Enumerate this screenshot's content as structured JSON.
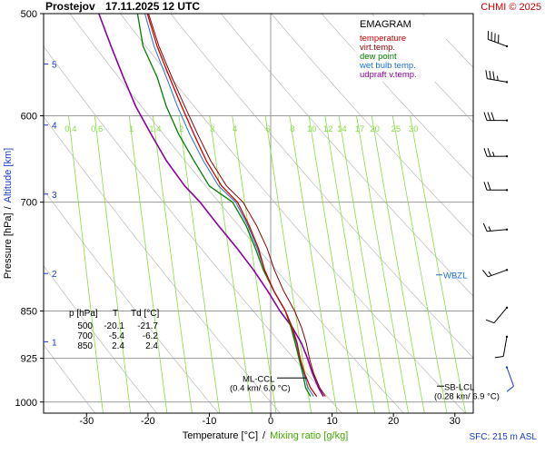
{
  "header": {
    "station": "Prostejov",
    "datetime": "17.11.2025 12 UTC",
    "credit": "CHMI © 2025"
  },
  "footer": {
    "sfc": "SFC: 215 m ASL"
  },
  "colors": {
    "temperature": "#cc0000",
    "virt_temp": "#8b0000",
    "dew_point": "#008000",
    "wet_bulb": "#1e6fd0",
    "updraft": "#8b00a0",
    "mixing": "#88dd44",
    "dry_adiabat": "#bbbbbb",
    "grid": "#999999",
    "altitude": "#1a3ccc",
    "wind": "#000000"
  },
  "chart_data": {
    "type": "line",
    "title": "EMAGRAM",
    "xlabel": {
      "temp": "Temperature [°C]",
      "sep": "/",
      "mix": "Mixing ratio [g/kg]"
    },
    "ylabel": {
      "pres": "Pressure [hPa]",
      "sep": "/",
      "alt": "Altitude [km]"
    },
    "xlim": [
      -37,
      33
    ],
    "ylim": [
      1020,
      500
    ],
    "x_ticks": [
      "-30",
      "-20",
      "-10",
      "0",
      "10",
      "20",
      "30"
    ],
    "x_tick_values": [
      -30,
      -20,
      -10,
      0,
      10,
      20,
      30
    ],
    "y_ticks": [
      "500",
      "600",
      "700",
      "850",
      "925",
      "1000"
    ],
    "y_tick_values": [
      500,
      600,
      700,
      850,
      925,
      1000
    ],
    "altitude_ticks": [
      {
        "label": "5",
        "p": 547
      },
      {
        "label": "4",
        "p": 610
      },
      {
        "label": "3",
        "p": 690
      },
      {
        "label": "2",
        "p": 795
      },
      {
        "label": "1",
        "p": 898
      }
    ],
    "mixing_ratio_labels": [
      "0.4",
      "0.6",
      "1",
      "1.4",
      "2",
      "3",
      "4",
      "6",
      "8",
      "10",
      "12",
      "14",
      "17",
      "20",
      "25",
      "30"
    ],
    "mixing_ratio_values": [
      0.4,
      0.6,
      1,
      1.4,
      2,
      3,
      4,
      6,
      8,
      10,
      12,
      14,
      17,
      20,
      25,
      30
    ],
    "legend": [
      "temperature",
      "virt.temp.",
      "dew point",
      "wet bulb temp.",
      "udpraft v.temp."
    ],
    "series": [
      {
        "name": "temperature",
        "points": [
          [
            -20.1,
            500
          ],
          [
            -18.5,
            530
          ],
          [
            -16.5,
            560
          ],
          [
            -14.5,
            590
          ],
          [
            -12.5,
            620
          ],
          [
            -10.5,
            650
          ],
          [
            -8,
            680
          ],
          [
            -5.4,
            700
          ],
          [
            -3.5,
            730
          ],
          [
            -2,
            760
          ],
          [
            -1,
            790
          ],
          [
            0.5,
            820
          ],
          [
            2.4,
            850
          ],
          [
            3.5,
            875
          ],
          [
            4.3,
            900
          ],
          [
            4.8,
            925
          ],
          [
            5.5,
            950
          ],
          [
            6.5,
            975
          ],
          [
            7.5,
            990
          ]
        ]
      },
      {
        "name": "virt.temp.",
        "points": [
          [
            -19.9,
            500
          ],
          [
            -18.2,
            530
          ],
          [
            -16.1,
            560
          ],
          [
            -14,
            590
          ],
          [
            -11.9,
            620
          ],
          [
            -9.8,
            650
          ],
          [
            -7.2,
            680
          ],
          [
            -4.5,
            700
          ],
          [
            -2.3,
            730
          ],
          [
            -0.6,
            760
          ],
          [
            0.6,
            790
          ],
          [
            2.1,
            820
          ],
          [
            3.9,
            850
          ],
          [
            5,
            875
          ],
          [
            5.8,
            900
          ],
          [
            6.3,
            925
          ],
          [
            7,
            950
          ],
          [
            8,
            975
          ],
          [
            8.9,
            990
          ]
        ]
      },
      {
        "name": "dew point",
        "points": [
          [
            -21.7,
            500
          ],
          [
            -20.8,
            530
          ],
          [
            -18.5,
            560
          ],
          [
            -17,
            590
          ],
          [
            -15,
            620
          ],
          [
            -12.5,
            650
          ],
          [
            -10,
            680
          ],
          [
            -6.2,
            700
          ],
          [
            -4,
            730
          ],
          [
            -2.5,
            760
          ],
          [
            -1.2,
            790
          ],
          [
            0.5,
            820
          ],
          [
            2.4,
            850
          ],
          [
            3.3,
            875
          ],
          [
            4,
            900
          ],
          [
            4.6,
            925
          ],
          [
            5.2,
            950
          ],
          [
            5.7,
            975
          ],
          [
            6.5,
            990
          ]
        ]
      },
      {
        "name": "wet bulb temp.",
        "points": [
          [
            -20.5,
            500
          ],
          [
            -19,
            530
          ],
          [
            -17,
            560
          ],
          [
            -15.2,
            590
          ],
          [
            -13.2,
            620
          ],
          [
            -11,
            650
          ],
          [
            -8.5,
            680
          ],
          [
            -5.7,
            700
          ],
          [
            -3.7,
            730
          ],
          [
            -2.2,
            760
          ],
          [
            -1,
            790
          ],
          [
            0.5,
            820
          ],
          [
            2.4,
            850
          ],
          [
            3.3,
            875
          ],
          [
            4.2,
            900
          ],
          [
            4.7,
            925
          ],
          [
            5.4,
            950
          ],
          [
            6.1,
            975
          ],
          [
            7,
            990
          ]
        ]
      },
      {
        "name": "udpraft v.temp.",
        "points": [
          [
            -28,
            500
          ],
          [
            -26,
            530
          ],
          [
            -24,
            560
          ],
          [
            -22,
            590
          ],
          [
            -19.5,
            620
          ],
          [
            -17,
            650
          ],
          [
            -14,
            680
          ],
          [
            -11.5,
            700
          ],
          [
            -8.5,
            730
          ],
          [
            -5.5,
            760
          ],
          [
            -2.8,
            790
          ],
          [
            -0.5,
            820
          ],
          [
            1.5,
            850
          ],
          [
            3.5,
            875
          ],
          [
            5,
            900
          ],
          [
            6,
            925
          ],
          [
            6.8,
            950
          ],
          [
            7.8,
            975
          ],
          [
            8.6,
            990
          ]
        ]
      }
    ],
    "annotations": {
      "wbzl": {
        "label": "WBZL",
        "p": 797
      },
      "ml_ccl": {
        "label": "ML-CCL",
        "detail": "(0.4 km/ 6.0 °C)",
        "t": 6.0,
        "p": 958
      },
      "sb_lcl": {
        "label": "SB-LCL",
        "detail": "(0.28 km/ 6.9 °C)",
        "t": 6.9,
        "p": 972
      }
    },
    "table": {
      "headers": [
        "p [hPa]",
        "T",
        "Td [°C]"
      ],
      "rows": [
        [
          "500",
          "-20.1",
          "-21.7"
        ],
        [
          "700",
          "-5.4",
          "-6.2"
        ],
        [
          "850",
          "2.4",
          "2.4"
        ]
      ]
    },
    "wind_barbs": [
      {
        "p": 530,
        "dir": 290,
        "speed_kt": 40
      },
      {
        "p": 565,
        "dir": 280,
        "speed_kt": 35
      },
      {
        "p": 605,
        "dir": 270,
        "speed_kt": 30
      },
      {
        "p": 645,
        "dir": 270,
        "speed_kt": 25
      },
      {
        "p": 685,
        "dir": 270,
        "speed_kt": 20
      },
      {
        "p": 735,
        "dir": 265,
        "speed_kt": 15
      },
      {
        "p": 790,
        "dir": 250,
        "speed_kt": 15
      },
      {
        "p": 845,
        "dir": 220,
        "speed_kt": 10
      },
      {
        "p": 890,
        "dir": 190,
        "speed_kt": 10
      },
      {
        "p": 940,
        "dir": 160,
        "speed_kt": 10
      }
    ]
  }
}
